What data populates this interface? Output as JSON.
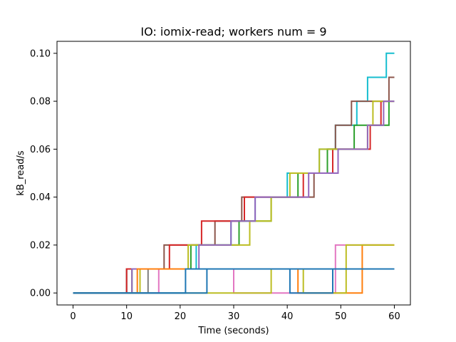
{
  "chart_data": {
    "type": "line",
    "step": true,
    "title": "IO: iomix-read; workers num = 9",
    "xlabel": "Time (seconds)",
    "ylabel": "kB_read/s",
    "xlim": [
      -3,
      63
    ],
    "ylim": [
      -0.005,
      0.105
    ],
    "xticks": [
      0,
      10,
      20,
      30,
      40,
      50,
      60
    ],
    "xtick_labels": [
      "0",
      "10",
      "20",
      "30",
      "40",
      "50",
      "60"
    ],
    "yticks": [
      0.0,
      0.02,
      0.04,
      0.06,
      0.08,
      0.1
    ],
    "ytick_labels": [
      "0.00",
      "0.02",
      "0.04",
      "0.06",
      "0.08",
      "0.10"
    ],
    "grid": false,
    "series": [
      {
        "color": "#17becf",
        "points": [
          [
            0,
            0
          ],
          [
            10,
            0
          ],
          [
            10,
            0.01
          ],
          [
            23,
            0.01
          ],
          [
            23,
            0.02
          ],
          [
            29.5,
            0.02
          ],
          [
            29.5,
            0.03
          ],
          [
            34,
            0.03
          ],
          [
            34,
            0.04
          ],
          [
            40,
            0.04
          ],
          [
            40,
            0.05
          ],
          [
            46,
            0.05
          ],
          [
            46,
            0.06
          ],
          [
            49,
            0.06
          ],
          [
            49,
            0.07
          ],
          [
            53,
            0.07
          ],
          [
            53,
            0.08
          ],
          [
            55,
            0.08
          ],
          [
            55,
            0.09
          ],
          [
            58.5,
            0.09
          ],
          [
            58.5,
            0.1
          ],
          [
            60,
            0.1
          ]
        ]
      },
      {
        "color": "#8c564b",
        "points": [
          [
            0,
            0
          ],
          [
            10,
            0
          ],
          [
            10,
            0.01
          ],
          [
            17,
            0.01
          ],
          [
            17,
            0.02
          ],
          [
            26.5,
            0.02
          ],
          [
            26.5,
            0.03
          ],
          [
            31.5,
            0.03
          ],
          [
            31.5,
            0.04
          ],
          [
            45,
            0.04
          ],
          [
            45,
            0.05
          ],
          [
            47.5,
            0.05
          ],
          [
            47.5,
            0.06
          ],
          [
            49,
            0.06
          ],
          [
            49,
            0.07
          ],
          [
            52,
            0.07
          ],
          [
            52,
            0.08
          ],
          [
            59,
            0.08
          ],
          [
            59,
            0.09
          ],
          [
            60,
            0.09
          ]
        ]
      },
      {
        "color": "#d62728",
        "points": [
          [
            0,
            0
          ],
          [
            10,
            0
          ],
          [
            10,
            0.01
          ],
          [
            18,
            0.01
          ],
          [
            18,
            0.02
          ],
          [
            24,
            0.02
          ],
          [
            24,
            0.03
          ],
          [
            32,
            0.03
          ],
          [
            32,
            0.04
          ],
          [
            43,
            0.04
          ],
          [
            43,
            0.05
          ],
          [
            48.5,
            0.05
          ],
          [
            48.5,
            0.06
          ],
          [
            55.5,
            0.06
          ],
          [
            55.5,
            0.07
          ],
          [
            57.5,
            0.07
          ],
          [
            57.5,
            0.08
          ],
          [
            60,
            0.08
          ]
        ]
      },
      {
        "color": "#2ca02c",
        "points": [
          [
            0,
            0
          ],
          [
            11,
            0
          ],
          [
            11,
            0.01
          ],
          [
            22,
            0.01
          ],
          [
            22,
            0.02
          ],
          [
            31,
            0.02
          ],
          [
            31,
            0.03
          ],
          [
            37,
            0.03
          ],
          [
            37,
            0.04
          ],
          [
            42,
            0.04
          ],
          [
            42,
            0.05
          ],
          [
            47.5,
            0.05
          ],
          [
            47.5,
            0.06
          ],
          [
            52.5,
            0.06
          ],
          [
            52.5,
            0.07
          ],
          [
            59,
            0.07
          ],
          [
            59,
            0.08
          ],
          [
            60,
            0.08
          ]
        ]
      },
      {
        "color": "#bcbd22",
        "points": [
          [
            0,
            0
          ],
          [
            12.5,
            0
          ],
          [
            12.5,
            0.01
          ],
          [
            21.5,
            0.01
          ],
          [
            21.5,
            0.02
          ],
          [
            33,
            0.02
          ],
          [
            33,
            0.03
          ],
          [
            37,
            0.03
          ],
          [
            37,
            0.04
          ],
          [
            40.5,
            0.04
          ],
          [
            40.5,
            0.05
          ],
          [
            46,
            0.05
          ],
          [
            46,
            0.06
          ],
          [
            55,
            0.06
          ],
          [
            55,
            0.07
          ],
          [
            56,
            0.07
          ],
          [
            56,
            0.08
          ],
          [
            60,
            0.08
          ]
        ]
      },
      {
        "color": "#9467bd",
        "points": [
          [
            0,
            0
          ],
          [
            11,
            0
          ],
          [
            11,
            0.01
          ],
          [
            23.5,
            0.01
          ],
          [
            23.5,
            0.02
          ],
          [
            29.5,
            0.02
          ],
          [
            29.5,
            0.03
          ],
          [
            34,
            0.03
          ],
          [
            34,
            0.04
          ],
          [
            44,
            0.04
          ],
          [
            44,
            0.05
          ],
          [
            49.5,
            0.05
          ],
          [
            49.5,
            0.06
          ],
          [
            55,
            0.06
          ],
          [
            55,
            0.07
          ],
          [
            58,
            0.07
          ],
          [
            58,
            0.08
          ],
          [
            60,
            0.08
          ]
        ]
      },
      {
        "color": "#7f7f7f",
        "points": [
          [
            0,
            0
          ],
          [
            14,
            0
          ],
          [
            14,
            0.01
          ],
          [
            60,
            0.01
          ]
        ]
      },
      {
        "color": "#e377c2",
        "points": [
          [
            0,
            0
          ],
          [
            16,
            0
          ],
          [
            16,
            0.01
          ],
          [
            30,
            0.01
          ],
          [
            30,
            0
          ],
          [
            49,
            0
          ],
          [
            49,
            0.02
          ],
          [
            60,
            0.02
          ]
        ]
      },
      {
        "color": "#ff7f0e",
        "points": [
          [
            0,
            0
          ],
          [
            12,
            0
          ],
          [
            12,
            0.01
          ],
          [
            42,
            0.01
          ],
          [
            42,
            0
          ],
          [
            54,
            0
          ],
          [
            54,
            0.02
          ],
          [
            60,
            0.02
          ]
        ]
      },
      {
        "color": "#bcbd22",
        "points": [
          [
            0,
            0
          ],
          [
            37,
            0
          ],
          [
            37,
            0.01
          ],
          [
            43,
            0.01
          ],
          [
            43,
            0
          ],
          [
            51,
            0
          ],
          [
            51,
            0.02
          ],
          [
            60,
            0.02
          ]
        ]
      },
      {
        "color": "#1f77b4",
        "points": [
          [
            0,
            0
          ],
          [
            21,
            0
          ],
          [
            21,
            0.01
          ],
          [
            40.5,
            0.01
          ],
          [
            40.5,
            0
          ],
          [
            48.5,
            0
          ],
          [
            48.5,
            0.01
          ],
          [
            60,
            0.01
          ]
        ]
      },
      {
        "color": "#1f77b4",
        "points": [
          [
            0,
            0
          ],
          [
            25,
            0
          ],
          [
            25,
            0.01
          ],
          [
            60,
            0.01
          ]
        ]
      }
    ]
  }
}
